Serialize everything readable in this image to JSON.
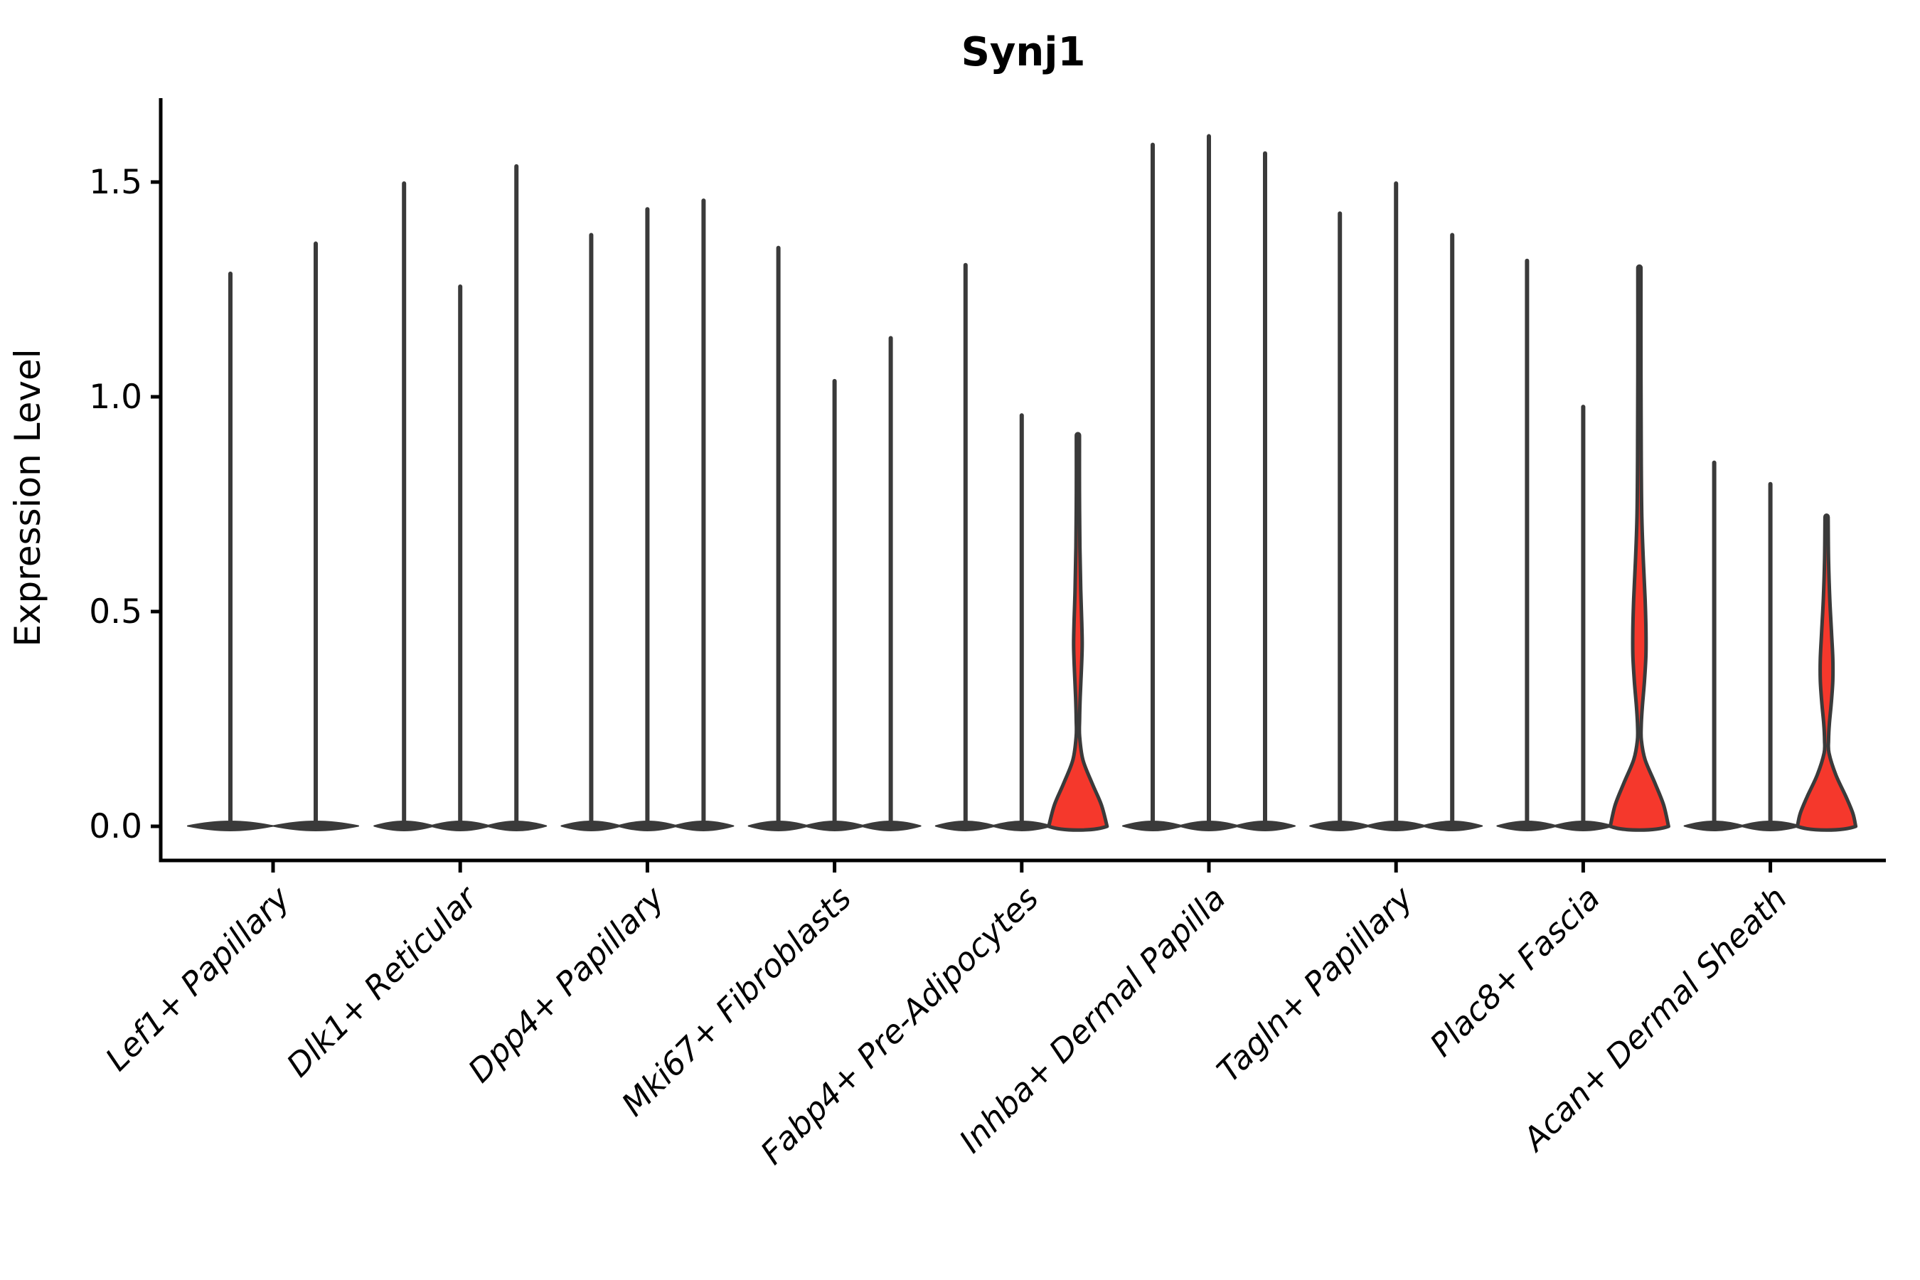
{
  "colors": {
    "violin_outline": "#3a3a3a",
    "highlight_fill": "#f5382c",
    "axis": "#000000",
    "background": "#ffffff"
  },
  "chart_data": {
    "type": "violin",
    "title": "Synj1",
    "ylabel": "Expression Level",
    "ylim": [
      0,
      1.69
    ],
    "yticks": [
      0.0,
      0.5,
      1.0,
      1.5
    ],
    "ytick_labels": [
      "0.0",
      "0.5",
      "1.0",
      "1.5"
    ],
    "grid": false,
    "legend": "none",
    "groups": [
      {
        "label": "Lef1+ Papillary",
        "violins": [
          {
            "max": 1.29
          },
          {
            "max": 1.36
          }
        ]
      },
      {
        "label": "Dlk1+ Reticular",
        "violins": [
          {
            "max": 1.5
          },
          {
            "max": 1.26
          },
          {
            "max": 1.54
          }
        ]
      },
      {
        "label": "Dpp4+ Papillary",
        "violins": [
          {
            "max": 1.38
          },
          {
            "max": 1.44
          },
          {
            "max": 1.46
          }
        ]
      },
      {
        "label": "Mki67+ Fibroblasts",
        "violins": [
          {
            "max": 1.35
          },
          {
            "max": 1.04
          },
          {
            "max": 1.14
          }
        ]
      },
      {
        "label": "Fabp4+ Pre-Adipocytes",
        "violins": [
          {
            "max": 1.31
          },
          {
            "max": 0.96
          },
          {
            "max": 0.91,
            "highlight": true,
            "profile": [
              [
                0.91,
                2.2
              ],
              [
                0.78,
                2.2
              ],
              [
                0.65,
                2.8
              ],
              [
                0.55,
                4.0
              ],
              [
                0.47,
                5.5
              ],
              [
                0.42,
                6.0
              ],
              [
                0.36,
                4.8
              ],
              [
                0.3,
                3.2
              ],
              [
                0.25,
                2.4
              ],
              [
                0.21,
                2.4
              ],
              [
                0.155,
                7.0
              ],
              [
                0.1,
                20.0
              ],
              [
                0.05,
                33.0
              ],
              [
                0.0,
                41.0
              ]
            ]
          }
        ]
      },
      {
        "label": "Inhba+ Dermal Papilla",
        "violins": [
          {
            "max": 1.59
          },
          {
            "max": 1.61
          },
          {
            "max": 1.57
          }
        ]
      },
      {
        "label": "Tagln+ Papillary",
        "violins": [
          {
            "max": 1.43
          },
          {
            "max": 1.5
          },
          {
            "max": 1.38
          }
        ]
      },
      {
        "label": "Plac8+ Fascia",
        "violins": [
          {
            "max": 1.32
          },
          {
            "max": 0.98
          },
          {
            "max": 1.3,
            "highlight": true,
            "profile": [
              [
                1.3,
                2.2
              ],
              [
                1.05,
                2.2
              ],
              [
                0.85,
                2.6
              ],
              [
                0.72,
                3.4
              ],
              [
                0.62,
                5.5
              ],
              [
                0.53,
                8.0
              ],
              [
                0.46,
                9.2
              ],
              [
                0.4,
                9.2
              ],
              [
                0.34,
                7.2
              ],
              [
                0.28,
                4.2
              ],
              [
                0.235,
                2.6
              ],
              [
                0.2,
                2.8
              ],
              [
                0.155,
                8.0
              ],
              [
                0.1,
                22.0
              ],
              [
                0.05,
                34.0
              ],
              [
                0.0,
                41.0
              ]
            ]
          }
        ]
      },
      {
        "label": "Acan+ Dermal Sheath",
        "violins": [
          {
            "max": 0.85
          },
          {
            "max": 0.8
          },
          {
            "max": 0.72,
            "highlight": true,
            "profile": [
              [
                0.72,
                2.2
              ],
              [
                0.62,
                2.8
              ],
              [
                0.53,
                4.5
              ],
              [
                0.45,
                7.0
              ],
              [
                0.39,
                8.8
              ],
              [
                0.34,
                8.8
              ],
              [
                0.29,
                6.8
              ],
              [
                0.24,
                4.0
              ],
              [
                0.2,
                2.8
              ],
              [
                0.17,
                3.5
              ],
              [
                0.12,
                13.0
              ],
              [
                0.07,
                27.0
              ],
              [
                0.03,
                37.0
              ],
              [
                0.0,
                41.0
              ]
            ]
          }
        ]
      }
    ]
  }
}
